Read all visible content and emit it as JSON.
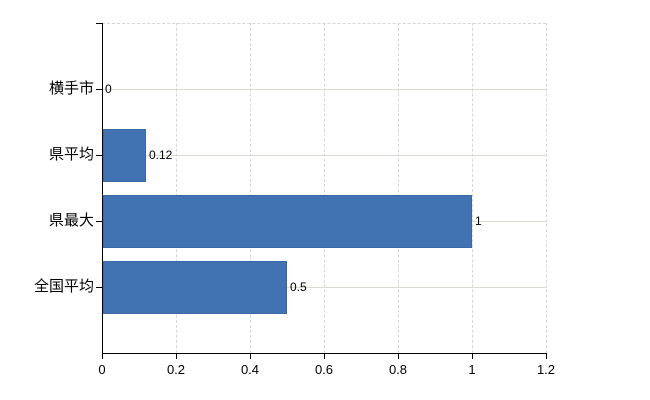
{
  "chart_data": {
    "type": "bar",
    "orientation": "horizontal",
    "title": "",
    "xlabel": "",
    "ylabel": "",
    "categories": [
      "横手市",
      "県平均",
      "県最大",
      "全国平均"
    ],
    "values": [
      0,
      0.12,
      1,
      0.5
    ],
    "data_labels": [
      "0",
      "0.12",
      "1",
      "0.5"
    ],
    "xlim": [
      0,
      1.2
    ],
    "x_ticks": [
      0,
      0.2,
      0.4,
      0.6,
      0.8,
      1,
      1.2
    ],
    "x_tick_labels": [
      "0",
      "0.2",
      "0.4",
      "0.6",
      "0.8",
      "1",
      "1.2"
    ],
    "grid": true,
    "legend": false,
    "colors": {
      "bar": "#4173b3",
      "bar_border": "#3a68a4",
      "gridline_horizontal": "#d8ddd3",
      "gridline_vertical": "#d5d9d1",
      "axis": "#000000",
      "text": "#000000",
      "background": "#ffffff"
    }
  }
}
